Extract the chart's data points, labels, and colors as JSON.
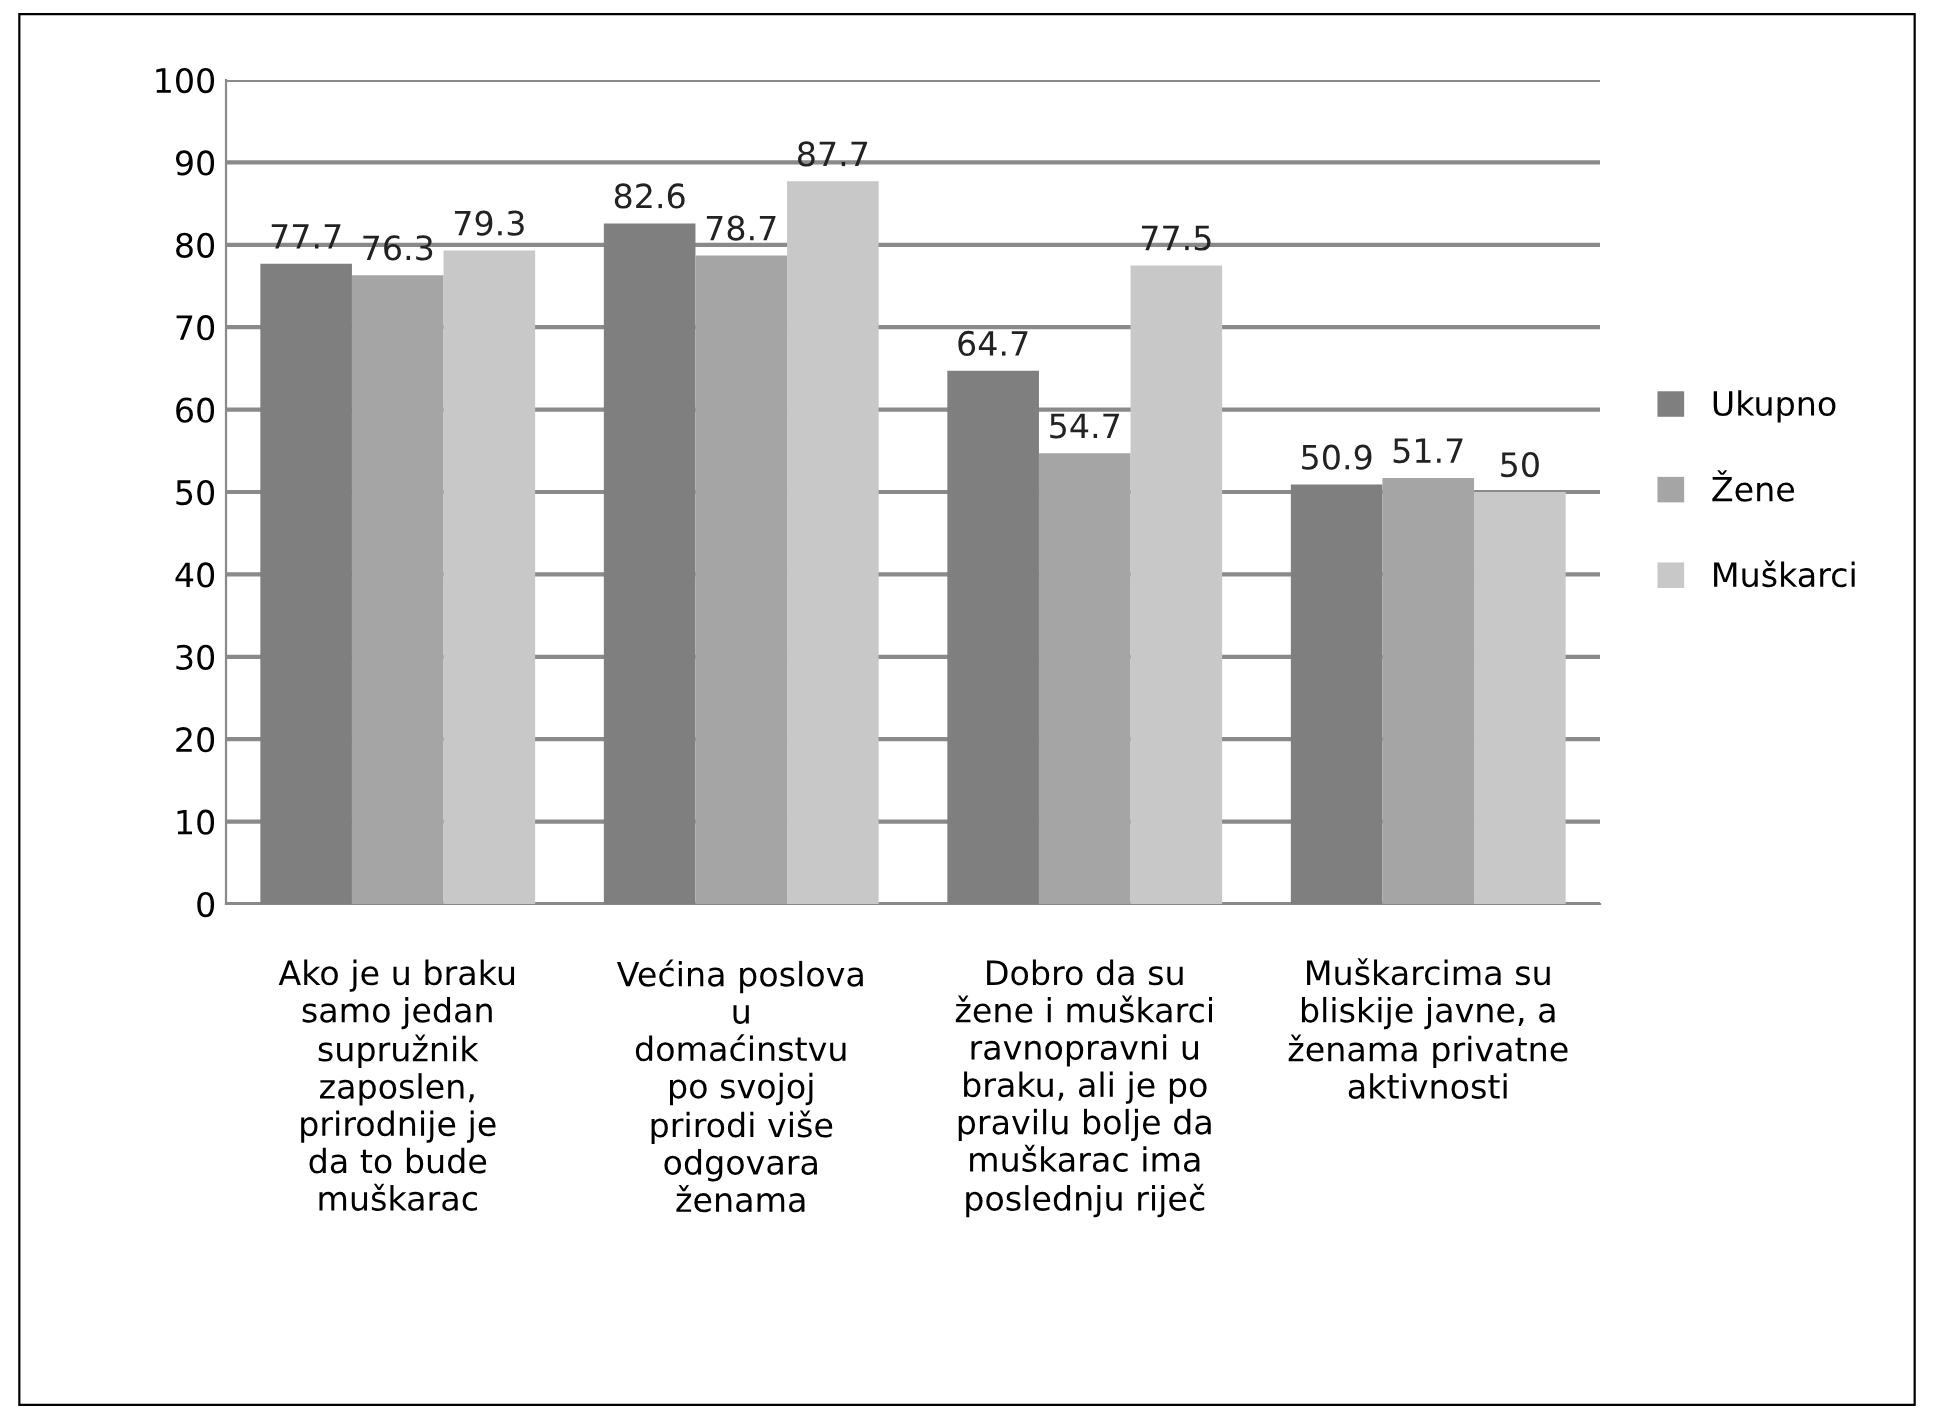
{
  "chart_data": {
    "type": "bar",
    "categories": [
      "Ako je u braku\nsamo jedan\nsupružnik\nzaposlen,\nprirodnije je\nda to bude\nmuškarac",
      "Većina poslova\nu\ndomaćinstvu\npo svojoj\nprirodi više\nodgovara\nženama",
      "Dobro da su\nžene i muškarci\nravnopravni u\nbraku, ali je po\npravilu bolje da\nmuškarac ima\nposlednju riječ",
      "Muškarcima su\nbliskije javne, a\nženama privatne\naktivnosti"
    ],
    "series": [
      {
        "name": "Ukupno",
        "color": "#7f7f7f",
        "values": [
          77.7,
          82.6,
          64.7,
          50.9
        ]
      },
      {
        "name": "Žene",
        "color": "#a5a5a5",
        "values": [
          76.3,
          78.7,
          54.7,
          51.7
        ]
      },
      {
        "name": "Muškarci",
        "color": "#c8c8c8",
        "values": [
          79.3,
          87.7,
          77.5,
          50
        ]
      }
    ],
    "ylim": [
      0,
      100
    ],
    "yticks": [
      0,
      10,
      20,
      30,
      40,
      50,
      60,
      70,
      80,
      90,
      100
    ],
    "grid": "y",
    "legend": "right",
    "data_labels": true
  }
}
